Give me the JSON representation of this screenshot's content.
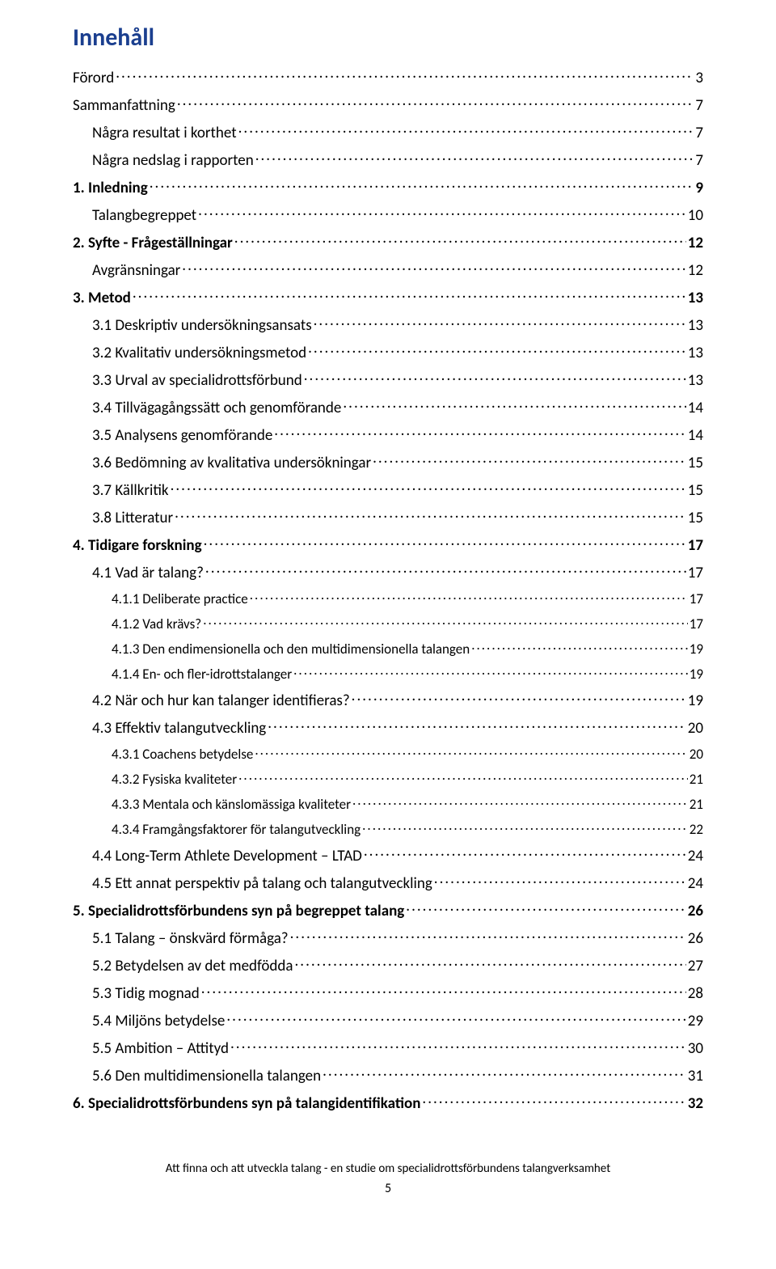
{
  "title": "Innehåll",
  "colors": {
    "title": "#1b3f8f",
    "text": "#000000",
    "background": "#ffffff"
  },
  "typography": {
    "title_fontsize": 30,
    "lvl1_fontsize": 19,
    "lvl2_fontsize": 19,
    "lvl3_fontsize": 17,
    "footer_fontsize": 15
  },
  "entries": [
    {
      "level": 1,
      "bold": false,
      "label": "Förord",
      "page": "3"
    },
    {
      "level": 1,
      "bold": false,
      "label": "Sammanfattning",
      "page": "7"
    },
    {
      "level": 2,
      "bold": false,
      "label": "Några resultat i korthet",
      "page": "7"
    },
    {
      "level": 2,
      "bold": false,
      "label": "Några nedslag i rapporten",
      "page": "7"
    },
    {
      "level": 1,
      "bold": true,
      "label": "1. Inledning",
      "page": "9"
    },
    {
      "level": 2,
      "bold": false,
      "label": "Talangbegreppet",
      "page": "10"
    },
    {
      "level": 1,
      "bold": true,
      "label": "2. Syfte - Frågeställningar",
      "page": "12"
    },
    {
      "level": 2,
      "bold": false,
      "label": "Avgränsningar",
      "page": "12"
    },
    {
      "level": 1,
      "bold": true,
      "label": "3. Metod",
      "page": "13"
    },
    {
      "level": 2,
      "bold": false,
      "label": "3.1 Deskriptiv undersökningsansats",
      "page": "13"
    },
    {
      "level": 2,
      "bold": false,
      "label": "3.2 Kvalitativ undersökningsmetod",
      "page": "13"
    },
    {
      "level": 2,
      "bold": false,
      "label": "3.3 Urval av specialidrottsförbund",
      "page": "13"
    },
    {
      "level": 2,
      "bold": false,
      "label": "3.4 Tillvägagångssätt och genomförande",
      "page": "14"
    },
    {
      "level": 2,
      "bold": false,
      "label": "3.5 Analysens genomförande",
      "page": "14"
    },
    {
      "level": 2,
      "bold": false,
      "label": "3.6 Bedömning av kvalitativa undersökningar",
      "page": "15"
    },
    {
      "level": 2,
      "bold": false,
      "label": "3.7 Källkritik",
      "page": "15"
    },
    {
      "level": 2,
      "bold": false,
      "label": "3.8 Litteratur",
      "page": "15"
    },
    {
      "level": 1,
      "bold": true,
      "label": "4. Tidigare forskning",
      "page": "17"
    },
    {
      "level": 2,
      "bold": false,
      "label": "4.1 Vad är talang?",
      "page": "17"
    },
    {
      "level": 3,
      "bold": false,
      "label": "4.1.1 Deliberate practice",
      "page": "17"
    },
    {
      "level": 3,
      "bold": false,
      "label": "4.1.2 Vad krävs?",
      "page": "17"
    },
    {
      "level": 3,
      "bold": false,
      "label": "4.1.3 Den endimensionella och den multidimensionella talangen",
      "page": "19"
    },
    {
      "level": 3,
      "bold": false,
      "label": "4.1.4 En- och fler-idrottstalanger",
      "page": "19"
    },
    {
      "level": 2,
      "bold": false,
      "label": "4.2 När och hur kan talanger identifieras?",
      "page": "19"
    },
    {
      "level": 2,
      "bold": false,
      "label": "4.3 Effektiv talangutveckling",
      "page": "20"
    },
    {
      "level": 3,
      "bold": false,
      "label": "4.3.1 Coachens betydelse",
      "page": "20"
    },
    {
      "level": 3,
      "bold": false,
      "label": "4.3.2 Fysiska kvaliteter",
      "page": "21"
    },
    {
      "level": 3,
      "bold": false,
      "label": "4.3.3 Mentala och känslomässiga kvaliteter",
      "page": "21"
    },
    {
      "level": 3,
      "bold": false,
      "label": "4.3.4 Framgångsfaktorer för talangutveckling",
      "page": "22"
    },
    {
      "level": 2,
      "bold": false,
      "label": "4.4 Long-Term Athlete Development – LTAD",
      "page": "24"
    },
    {
      "level": 2,
      "bold": false,
      "label": "4.5 Ett annat perspektiv på talang och talangutveckling",
      "page": "24"
    },
    {
      "level": 1,
      "bold": true,
      "label": "5. Specialidrottsförbundens syn på begreppet talang",
      "page": "26"
    },
    {
      "level": 2,
      "bold": false,
      "label": "5.1 Talang – önskvärd förmåga?",
      "page": "26"
    },
    {
      "level": 2,
      "bold": false,
      "label": "5.2 Betydelsen av det medfödda",
      "page": "27"
    },
    {
      "level": 2,
      "bold": false,
      "label": "5.3 Tidig mognad",
      "page": "28"
    },
    {
      "level": 2,
      "bold": false,
      "label": "5.4 Miljöns betydelse",
      "page": "29"
    },
    {
      "level": 2,
      "bold": false,
      "label": "5.5 Ambition – Attityd",
      "page": "30"
    },
    {
      "level": 2,
      "bold": false,
      "label": "5.6 Den multidimensionella talangen",
      "page": "31"
    },
    {
      "level": 1,
      "bold": true,
      "label": "6. Specialidrottsförbundens syn på talangidentifikation",
      "page": "32"
    }
  ],
  "footer": {
    "text": "Att finna och att utveckla talang - en studie om specialidrottsförbundens talangverksamhet",
    "page_number": "5"
  }
}
